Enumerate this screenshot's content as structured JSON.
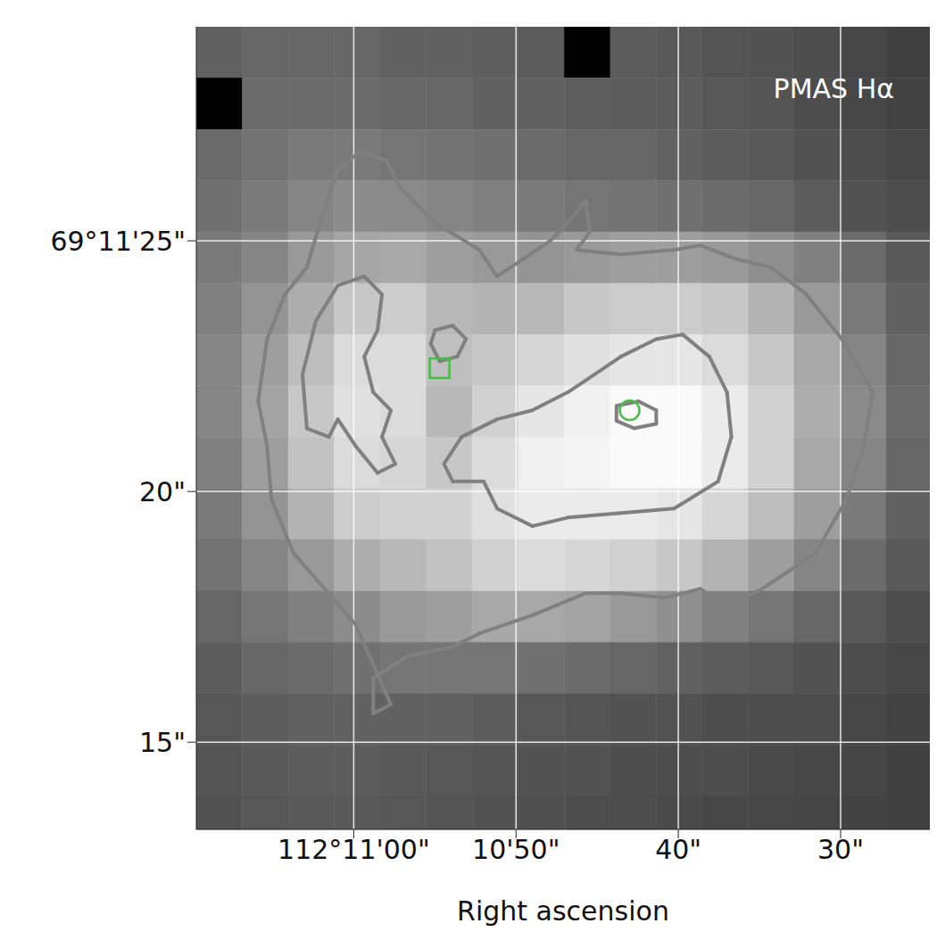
{
  "chart_data": {
    "type": "heatmap",
    "title": "PMAS Hα",
    "x_label": "Right ascension",
    "xlim": [
      69.7,
      24.5
    ],
    "ylim": [
      13.26,
      29.27
    ],
    "xticks": [
      {
        "value": 60,
        "label": "112°11'00\""
      },
      {
        "value": 50,
        "label": "10'50\""
      },
      {
        "value": 40,
        "label": "40\""
      },
      {
        "value": 30,
        "label": "30\""
      }
    ],
    "yticks": [
      {
        "value": 25,
        "label": "69°11'25\""
      },
      {
        "value": 20,
        "label": "20\""
      },
      {
        "value": 15,
        "label": "15\""
      }
    ],
    "grid": true,
    "cells": {
      "range": [
        0,
        100
      ],
      "x_edges": [
        69.7,
        66.87,
        64.03,
        61.2,
        58.37,
        55.53,
        52.7,
        49.86,
        47.03,
        44.19,
        41.36,
        38.53,
        35.69,
        32.86,
        30.02,
        27.19,
        24.36
      ],
      "y_edges": [
        29.27,
        28.25,
        27.22,
        26.2,
        25.18,
        24.15,
        23.13,
        22.11,
        21.08,
        20.06,
        19.04,
        18.01,
        16.99,
        15.97,
        14.94,
        13.92,
        12.9
      ],
      "values": [
        [
          38,
          40,
          40,
          40,
          38,
          38,
          37,
          36,
          0,
          36,
          35,
          33,
          32,
          30,
          28,
          25
        ],
        [
          0,
          42,
          42,
          42,
          40,
          40,
          38,
          38,
          37,
          36,
          36,
          34,
          33,
          30,
          28,
          26
        ],
        [
          42,
          45,
          48,
          48,
          46,
          45,
          44,
          42,
          40,
          40,
          38,
          36,
          35,
          32,
          30,
          28
        ],
        [
          44,
          48,
          52,
          55,
          54,
          52,
          50,
          48,
          46,
          45,
          44,
          42,
          40,
          36,
          32,
          30
        ],
        [
          48,
          52,
          60,
          65,
          66,
          62,
          60,
          58,
          60,
          62,
          62,
          60,
          56,
          50,
          42,
          35
        ],
        [
          50,
          58,
          68,
          78,
          80,
          72,
          70,
          72,
          78,
          80,
          80,
          78,
          70,
          60,
          48,
          38
        ],
        [
          52,
          62,
          74,
          86,
          86,
          75,
          78,
          84,
          88,
          90,
          90,
          86,
          78,
          66,
          52,
          40
        ],
        [
          52,
          64,
          78,
          88,
          86,
          72,
          82,
          90,
          94,
          98,
          98,
          92,
          82,
          68,
          54,
          42
        ],
        [
          50,
          62,
          76,
          86,
          84,
          78,
          86,
          94,
          96,
          98,
          98,
          92,
          82,
          66,
          52,
          40
        ],
        [
          48,
          58,
          70,
          80,
          82,
          82,
          88,
          92,
          92,
          92,
          90,
          84,
          74,
          62,
          48,
          38
        ],
        [
          45,
          52,
          60,
          68,
          72,
          76,
          82,
          86,
          84,
          82,
          78,
          70,
          62,
          52,
          42,
          35
        ],
        [
          40,
          46,
          50,
          55,
          60,
          62,
          66,
          66,
          64,
          60,
          56,
          50,
          46,
          40,
          34,
          30
        ],
        [
          36,
          40,
          42,
          44,
          46,
          46,
          46,
          44,
          42,
          40,
          38,
          36,
          34,
          32,
          30,
          28
        ],
        [
          34,
          36,
          38,
          38,
          38,
          38,
          36,
          34,
          33,
          32,
          32,
          30,
          30,
          30,
          28,
          26
        ],
        [
          33,
          35,
          36,
          36,
          35,
          34,
          33,
          32,
          32,
          30,
          30,
          30,
          29,
          28,
          27,
          25
        ],
        [
          32,
          34,
          35,
          35,
          34,
          33,
          32,
          31,
          30,
          30,
          29,
          28,
          28,
          27,
          26,
          25
        ]
      ]
    },
    "contours": [
      {
        "color": "#808080",
        "points": [
          [
            65.89,
            21.8
          ],
          [
            65.34,
            23.04
          ],
          [
            64.25,
            23.93
          ],
          [
            62.89,
            24.47
          ],
          [
            62.07,
            25.36
          ],
          [
            60.98,
            26.42
          ],
          [
            59.62,
            26.78
          ],
          [
            57.98,
            26.6
          ],
          [
            57.17,
            26.07
          ],
          [
            54.99,
            25.36
          ],
          [
            52.26,
            24.82
          ],
          [
            51.17,
            24.29
          ],
          [
            49.54,
            24.64
          ],
          [
            47.9,
            25.0
          ],
          [
            46.81,
            25.36
          ],
          [
            45.72,
            25.8
          ],
          [
            45.45,
            25.18
          ],
          [
            46.27,
            24.82
          ],
          [
            43.54,
            24.73
          ],
          [
            40.27,
            24.82
          ],
          [
            38.64,
            24.91
          ],
          [
            36.46,
            24.64
          ],
          [
            34.28,
            24.47
          ],
          [
            32.1,
            23.93
          ],
          [
            29.92,
            23.04
          ],
          [
            28.01,
            21.98
          ],
          [
            28.56,
            20.91
          ],
          [
            29.65,
            19.84
          ],
          [
            31.55,
            18.77
          ],
          [
            34.82,
            18.06
          ],
          [
            37.0,
            17.7
          ],
          [
            38.64,
            18.06
          ],
          [
            40.82,
            17.88
          ],
          [
            43.54,
            17.97
          ],
          [
            45.72,
            17.97
          ],
          [
            48.99,
            17.53
          ],
          [
            52.26,
            17.17
          ],
          [
            53.9,
            16.9
          ],
          [
            56.62,
            16.73
          ],
          [
            58.8,
            16.28
          ],
          [
            58.8,
            15.57
          ],
          [
            57.71,
            15.75
          ],
          [
            59.89,
            17.35
          ],
          [
            63.71,
            18.77
          ],
          [
            65.07,
            19.84
          ],
          [
            65.34,
            20.91
          ],
          [
            65.89,
            21.8
          ]
        ]
      },
      {
        "color": "#808080",
        "points": [
          [
            62.89,
            21.26
          ],
          [
            63.16,
            22.33
          ],
          [
            62.34,
            23.4
          ],
          [
            60.98,
            24.11
          ],
          [
            59.35,
            24.29
          ],
          [
            58.26,
            23.93
          ],
          [
            58.53,
            23.22
          ],
          [
            59.35,
            22.69
          ],
          [
            58.8,
            21.98
          ],
          [
            57.71,
            21.62
          ],
          [
            58.26,
            21.09
          ],
          [
            57.44,
            20.55
          ],
          [
            58.53,
            20.37
          ],
          [
            59.89,
            20.91
          ],
          [
            60.98,
            21.44
          ],
          [
            61.53,
            21.09
          ],
          [
            62.89,
            21.26
          ]
        ]
      },
      {
        "color": "#808080",
        "points": [
          [
            54.44,
            20.55
          ],
          [
            53.35,
            21.09
          ],
          [
            51.17,
            21.44
          ],
          [
            48.99,
            21.62
          ],
          [
            46.81,
            21.98
          ],
          [
            45.18,
            22.33
          ],
          [
            43.54,
            22.69
          ],
          [
            41.36,
            23.04
          ],
          [
            39.73,
            23.13
          ],
          [
            38.09,
            22.69
          ],
          [
            37.0,
            21.98
          ],
          [
            36.73,
            21.09
          ],
          [
            37.55,
            20.2
          ],
          [
            40.27,
            19.66
          ],
          [
            43.54,
            19.57
          ],
          [
            46.81,
            19.48
          ],
          [
            48.99,
            19.31
          ],
          [
            51.17,
            19.66
          ],
          [
            51.99,
            20.2
          ],
          [
            53.9,
            20.2
          ],
          [
            54.44,
            20.55
          ]
        ]
      },
      {
        "color": "#808080",
        "points": [
          [
            43.81,
            21.71
          ],
          [
            42.45,
            21.8
          ],
          [
            41.36,
            21.62
          ],
          [
            41.36,
            21.35
          ],
          [
            42.72,
            21.26
          ],
          [
            43.81,
            21.41
          ],
          [
            43.81,
            21.71
          ]
        ]
      },
      {
        "color": "#808080",
        "points": [
          [
            55.26,
            22.95
          ],
          [
            54.99,
            23.22
          ],
          [
            53.9,
            23.31
          ],
          [
            53.08,
            23.04
          ],
          [
            53.62,
            22.69
          ],
          [
            54.71,
            22.6
          ],
          [
            55.26,
            22.95
          ]
        ]
      }
    ],
    "markers": [
      {
        "marker": "square",
        "x": 54.71,
        "y": 22.46,
        "color": "#4cbb4c"
      },
      {
        "marker": "circle",
        "x": 43.0,
        "y": 21.62,
        "color": "#4cbb4c"
      }
    ]
  }
}
